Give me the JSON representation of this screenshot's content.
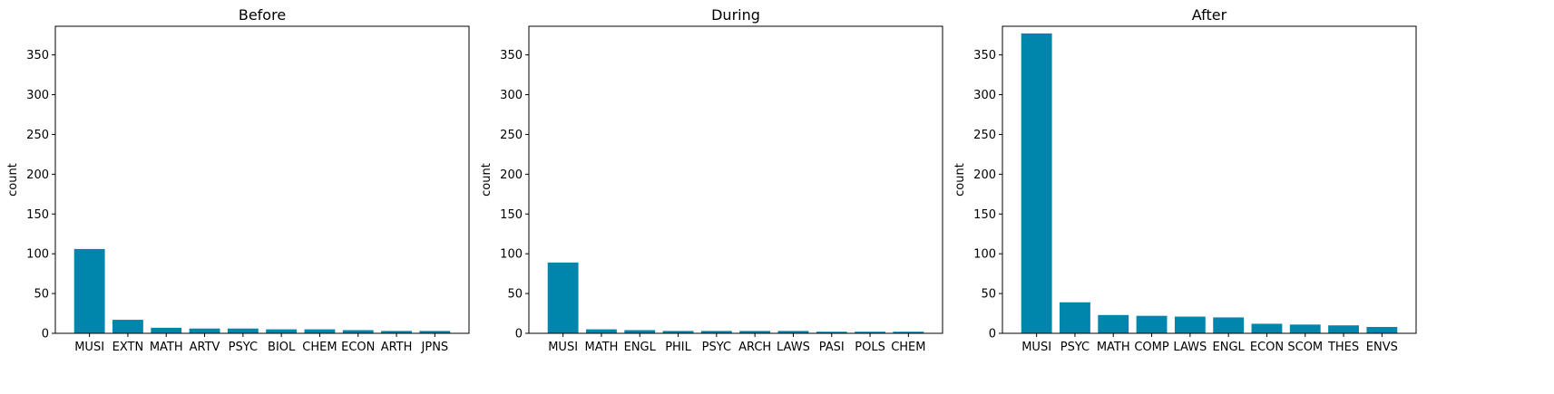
{
  "chart_data": [
    {
      "type": "bar",
      "title": "Before",
      "xlabel": "",
      "ylabel": "count",
      "categories": [
        "MUSI",
        "EXTN",
        "MATH",
        "ARTV",
        "PSYC",
        "BIOL",
        "CHEM",
        "ECON",
        "ARTH",
        "JPNS"
      ],
      "values": [
        106,
        17,
        7,
        6,
        6,
        5,
        5,
        4,
        3,
        3
      ],
      "ylim": [
        0,
        386
      ],
      "yticks": [
        0,
        50,
        100,
        150,
        200,
        250,
        300,
        350
      ],
      "color": "#0086AD"
    },
    {
      "type": "bar",
      "title": "During",
      "xlabel": "",
      "ylabel": "count",
      "categories": [
        "MUSI",
        "MATH",
        "ENGL",
        "PHIL",
        "PSYC",
        "ARCH",
        "LAWS",
        "PASI",
        "POLS",
        "CHEM"
      ],
      "values": [
        89,
        5,
        4,
        3,
        3,
        3,
        3,
        2,
        2,
        2
      ],
      "ylim": [
        0,
        386
      ],
      "yticks": [
        0,
        50,
        100,
        150,
        200,
        250,
        300,
        350
      ],
      "color": "#0086AD"
    },
    {
      "type": "bar",
      "title": "After",
      "xlabel": "",
      "ylabel": "count",
      "categories": [
        "MUSI",
        "PSYC",
        "MATH",
        "COMP",
        "LAWS",
        "ENGL",
        "ECON",
        "SCOM",
        "THES",
        "ENVS"
      ],
      "values": [
        377,
        39,
        23,
        22,
        21,
        20,
        12,
        11,
        10,
        8
      ],
      "ylim": [
        0,
        386
      ],
      "yticks": [
        0,
        50,
        100,
        150,
        200,
        250,
        300,
        350
      ],
      "color": "#0086AD"
    }
  ]
}
